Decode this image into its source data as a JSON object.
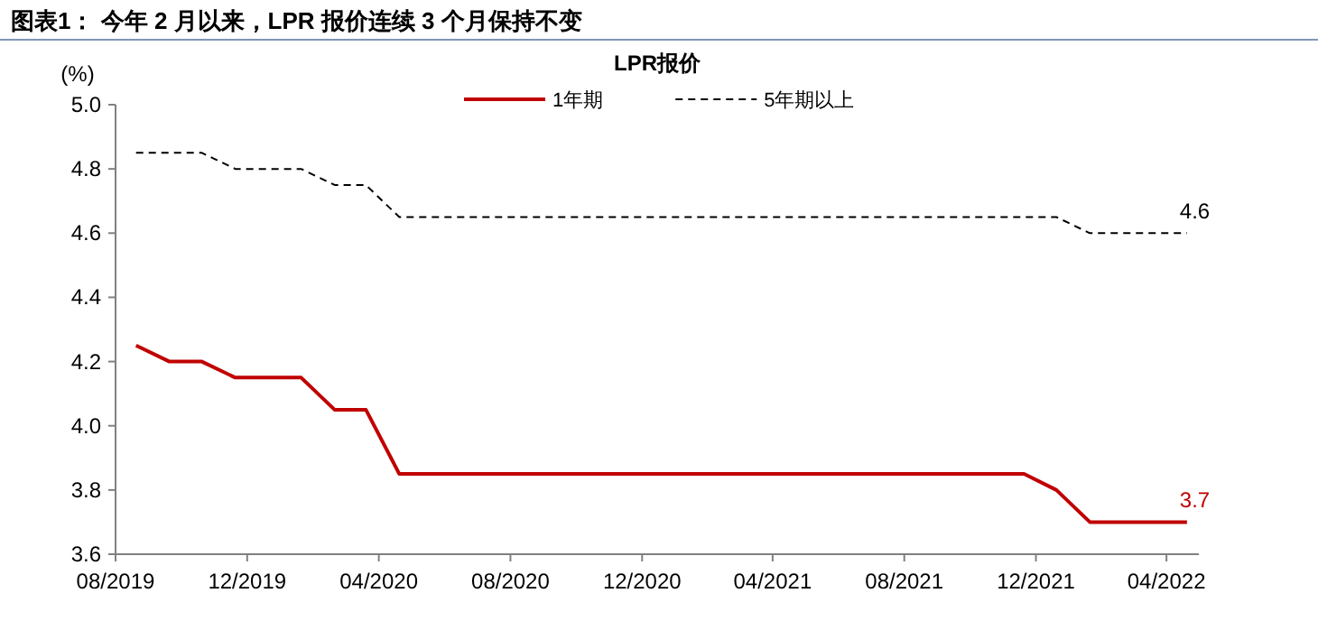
{
  "chart_data": {
    "type": "line",
    "title": "图表1：  今年 2 月以来，LPR 报价连续 3 个月保持不变",
    "ylabel": "(%)",
    "legend_title": "LPR报价",
    "legend": "top",
    "x": [
      "2019-08-20",
      "2019-09-20",
      "2019-10-20",
      "2019-11-20",
      "2019-12-20",
      "2020-01-20",
      "2020-02-20",
      "2020-03-20",
      "2020-04-20",
      "2020-05-20",
      "2020-06-20",
      "2020-07-20",
      "2020-08-20",
      "2020-09-20",
      "2020-10-20",
      "2020-11-20",
      "2020-12-20",
      "2021-01-20",
      "2021-02-20",
      "2021-03-20",
      "2021-04-20",
      "2021-05-20",
      "2021-06-20",
      "2021-07-20",
      "2021-08-20",
      "2021-09-20",
      "2021-10-20",
      "2021-11-20",
      "2021-12-20",
      "2022-01-20",
      "2022-02-20",
      "2022-03-20",
      "2022-04-20"
    ],
    "series": [
      {
        "name": "1年期",
        "color": "#c00000",
        "line_style": "solid",
        "values": [
          4.25,
          4.2,
          4.2,
          4.15,
          4.15,
          4.15,
          4.05,
          4.05,
          3.85,
          3.85,
          3.85,
          3.85,
          3.85,
          3.85,
          3.85,
          3.85,
          3.85,
          3.85,
          3.85,
          3.85,
          3.85,
          3.85,
          3.85,
          3.85,
          3.85,
          3.85,
          3.85,
          3.85,
          3.8,
          3.7,
          3.7,
          3.7,
          3.7
        ]
      },
      {
        "name": "5年期以上",
        "color": "#000000",
        "line_style": "dashed",
        "values": [
          4.85,
          4.85,
          4.85,
          4.8,
          4.8,
          4.8,
          4.75,
          4.75,
          4.65,
          4.65,
          4.65,
          4.65,
          4.65,
          4.65,
          4.65,
          4.65,
          4.65,
          4.65,
          4.65,
          4.65,
          4.65,
          4.65,
          4.65,
          4.65,
          4.65,
          4.65,
          4.65,
          4.65,
          4.65,
          4.6,
          4.6,
          4.6,
          4.6
        ]
      }
    ],
    "annotations": [
      {
        "text": "4.6",
        "x": "2022-04-20",
        "y": 4.6
      },
      {
        "text": "3.7",
        "x": "2022-04-20",
        "y": 3.7
      }
    ],
    "xlim": [
      "2019-08-01",
      "2022-05-01"
    ],
    "xticks": [
      {
        "value": "2019-08-01",
        "label": "08/2019"
      },
      {
        "value": "2019-12-01",
        "label": "12/2019"
      },
      {
        "value": "2020-04-01",
        "label": "04/2020"
      },
      {
        "value": "2020-08-01",
        "label": "08/2020"
      },
      {
        "value": "2020-12-01",
        "label": "12/2020"
      },
      {
        "value": "2021-04-01",
        "label": "04/2021"
      },
      {
        "value": "2021-08-01",
        "label": "08/2021"
      },
      {
        "value": "2021-12-01",
        "label": "12/2021"
      },
      {
        "value": "2022-04-01",
        "label": "04/2022"
      }
    ],
    "ylim": [
      3.6,
      5.0
    ],
    "yticks": [
      {
        "value": 3.6,
        "label": "3.6"
      },
      {
        "value": 3.8,
        "label": "3.8"
      },
      {
        "value": 4.0,
        "label": "4.0"
      },
      {
        "value": 4.2,
        "label": "4.2"
      },
      {
        "value": 4.4,
        "label": "4.4"
      },
      {
        "value": 4.6,
        "label": "4.6"
      },
      {
        "value": 4.8,
        "label": "4.8"
      },
      {
        "value": 5.0,
        "label": "5.0"
      }
    ],
    "grid": false,
    "marker": "none"
  }
}
